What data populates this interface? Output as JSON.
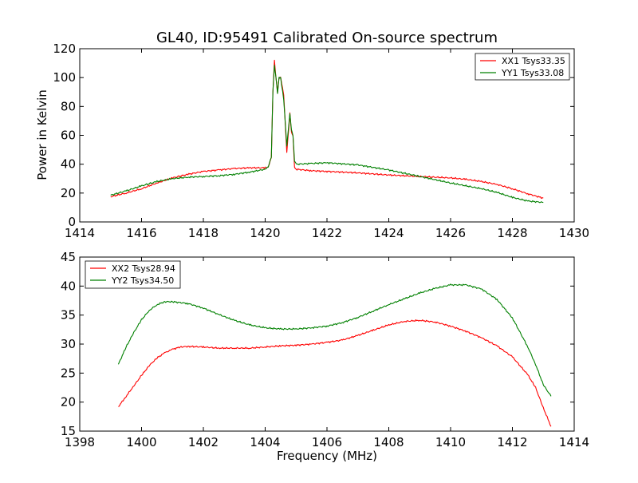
{
  "figure": {
    "title": "GL40, ID:95491 Calibrated On-source spectrum",
    "ylabel": "Power in Kelvin",
    "xlabel": "Frequency (MHz)"
  },
  "colors": {
    "XX": "#ff0000",
    "YY": "#008000",
    "frame": "#000000",
    "background": "#ffffff"
  },
  "chart_data": [
    {
      "type": "line",
      "xlim": [
        1414,
        1430
      ],
      "ylim": [
        0,
        120
      ],
      "xticks": [
        1414,
        1416,
        1418,
        1420,
        1422,
        1424,
        1426,
        1428,
        1430
      ],
      "yticks": [
        0,
        20,
        40,
        60,
        80,
        100,
        120
      ],
      "ylabel": "Power in Kelvin",
      "legend_position": "top-right",
      "grid": false,
      "series": [
        {
          "name": "XX1 Tsys33.35",
          "color": "#ff0000",
          "points": [
            [
              1415,
              17.5
            ],
            [
              1415.5,
              20
            ],
            [
              1416,
              23
            ],
            [
              1416.5,
              27
            ],
            [
              1417,
              30.5
            ],
            [
              1417.5,
              33
            ],
            [
              1418,
              35
            ],
            [
              1418.5,
              36
            ],
            [
              1419,
              37
            ],
            [
              1419.5,
              37.5
            ],
            [
              1420,
              37.5
            ],
            [
              1420.1,
              38
            ],
            [
              1420.2,
              45
            ],
            [
              1420.25,
              90
            ],
            [
              1420.3,
              112
            ],
            [
              1420.35,
              100
            ],
            [
              1420.4,
              90
            ],
            [
              1420.45,
              100
            ],
            [
              1420.5,
              100
            ],
            [
              1420.6,
              88
            ],
            [
              1420.7,
              48
            ],
            [
              1420.8,
              75
            ],
            [
              1420.85,
              62
            ],
            [
              1420.9,
              60
            ],
            [
              1420.95,
              38
            ],
            [
              1421,
              36.5
            ],
            [
              1421.5,
              35.5
            ],
            [
              1422,
              35
            ],
            [
              1423,
              34
            ],
            [
              1424,
              32.5
            ],
            [
              1425,
              31.5
            ],
            [
              1426,
              30.5
            ],
            [
              1426.5,
              29.5
            ],
            [
              1427,
              28
            ],
            [
              1427.5,
              26
            ],
            [
              1428,
              23
            ],
            [
              1428.5,
              19.5
            ],
            [
              1429,
              16.5
            ]
          ]
        },
        {
          "name": "YY1 Tsys33.08",
          "color": "#008000",
          "points": [
            [
              1415,
              18.5
            ],
            [
              1415.5,
              21.5
            ],
            [
              1416,
              25
            ],
            [
              1416.5,
              28
            ],
            [
              1417,
              30
            ],
            [
              1417.5,
              31
            ],
            [
              1418,
              31.5
            ],
            [
              1418.5,
              32
            ],
            [
              1419,
              33
            ],
            [
              1419.5,
              34.5
            ],
            [
              1420,
              36.5
            ],
            [
              1420.1,
              38
            ],
            [
              1420.2,
              45
            ],
            [
              1420.25,
              90
            ],
            [
              1420.3,
              108
            ],
            [
              1420.35,
              100
            ],
            [
              1420.4,
              89
            ],
            [
              1420.45,
              100
            ],
            [
              1420.5,
              100
            ],
            [
              1420.6,
              85
            ],
            [
              1420.7,
              53
            ],
            [
              1420.8,
              75
            ],
            [
              1420.85,
              64
            ],
            [
              1420.9,
              60
            ],
            [
              1420.95,
              42
            ],
            [
              1421,
              40
            ],
            [
              1421.5,
              40.5
            ],
            [
              1422,
              41
            ],
            [
              1423,
              39.5
            ],
            [
              1424,
              36
            ],
            [
              1425,
              31.5
            ],
            [
              1426,
              27
            ],
            [
              1427,
              23
            ],
            [
              1427.5,
              20.5
            ],
            [
              1428,
              17
            ],
            [
              1428.5,
              14.5
            ],
            [
              1429,
              13.5
            ]
          ]
        }
      ]
    },
    {
      "type": "line",
      "xlim": [
        1398,
        1414
      ],
      "ylim": [
        15,
        45
      ],
      "xticks": [
        1398,
        1400,
        1402,
        1404,
        1406,
        1408,
        1410,
        1412,
        1414
      ],
      "yticks": [
        15,
        20,
        25,
        30,
        35,
        40,
        45
      ],
      "xlabel": "Frequency (MHz)",
      "legend_position": "top-left",
      "grid": false,
      "series": [
        {
          "name": "XX2 Tsys28.94",
          "color": "#ff0000",
          "points": [
            [
              1399.25,
              19.2
            ],
            [
              1399.5,
              21
            ],
            [
              1399.75,
              22.8
            ],
            [
              1400,
              24.6
            ],
            [
              1400.25,
              26.3
            ],
            [
              1400.5,
              27.6
            ],
            [
              1400.75,
              28.5
            ],
            [
              1401,
              29.1
            ],
            [
              1401.25,
              29.5
            ],
            [
              1401.5,
              29.6
            ],
            [
              1402,
              29.5
            ],
            [
              1402.5,
              29.3
            ],
            [
              1403,
              29.3
            ],
            [
              1403.5,
              29.3
            ],
            [
              1404,
              29.5
            ],
            [
              1404.5,
              29.7
            ],
            [
              1405,
              29.8
            ],
            [
              1405.5,
              30
            ],
            [
              1406,
              30.3
            ],
            [
              1406.5,
              30.7
            ],
            [
              1407,
              31.5
            ],
            [
              1407.5,
              32.4
            ],
            [
              1408,
              33.3
            ],
            [
              1408.5,
              33.9
            ],
            [
              1409,
              34.1
            ],
            [
              1409.5,
              33.8
            ],
            [
              1410,
              33.1
            ],
            [
              1410.5,
              32.2
            ],
            [
              1411,
              31.1
            ],
            [
              1411.5,
              29.7
            ],
            [
              1412,
              27.8
            ],
            [
              1412.5,
              24.7
            ],
            [
              1412.75,
              22.5
            ],
            [
              1413,
              19
            ],
            [
              1413.25,
              15.8
            ]
          ]
        },
        {
          "name": "YY2 Tsys34.50",
          "color": "#008000",
          "points": [
            [
              1399.25,
              26.5
            ],
            [
              1399.5,
              29.5
            ],
            [
              1399.75,
              32
            ],
            [
              1400,
              34.2
            ],
            [
              1400.25,
              35.8
            ],
            [
              1400.5,
              36.8
            ],
            [
              1400.75,
              37.3
            ],
            [
              1401,
              37.3
            ],
            [
              1401.5,
              37
            ],
            [
              1402,
              36.2
            ],
            [
              1402.5,
              35.1
            ],
            [
              1403,
              34.1
            ],
            [
              1403.5,
              33.3
            ],
            [
              1404,
              32.8
            ],
            [
              1404.5,
              32.6
            ],
            [
              1405,
              32.6
            ],
            [
              1405.5,
              32.8
            ],
            [
              1406,
              33.1
            ],
            [
              1406.5,
              33.7
            ],
            [
              1407,
              34.6
            ],
            [
              1407.5,
              35.7
            ],
            [
              1408,
              36.8
            ],
            [
              1408.5,
              37.8
            ],
            [
              1409,
              38.8
            ],
            [
              1409.5,
              39.6
            ],
            [
              1410,
              40.2
            ],
            [
              1410.5,
              40.2
            ],
            [
              1411,
              39.5
            ],
            [
              1411.5,
              37.7
            ],
            [
              1412,
              34.5
            ],
            [
              1412.5,
              29.5
            ],
            [
              1412.75,
              26.5
            ],
            [
              1413,
              23
            ],
            [
              1413.25,
              21
            ]
          ]
        }
      ]
    }
  ]
}
